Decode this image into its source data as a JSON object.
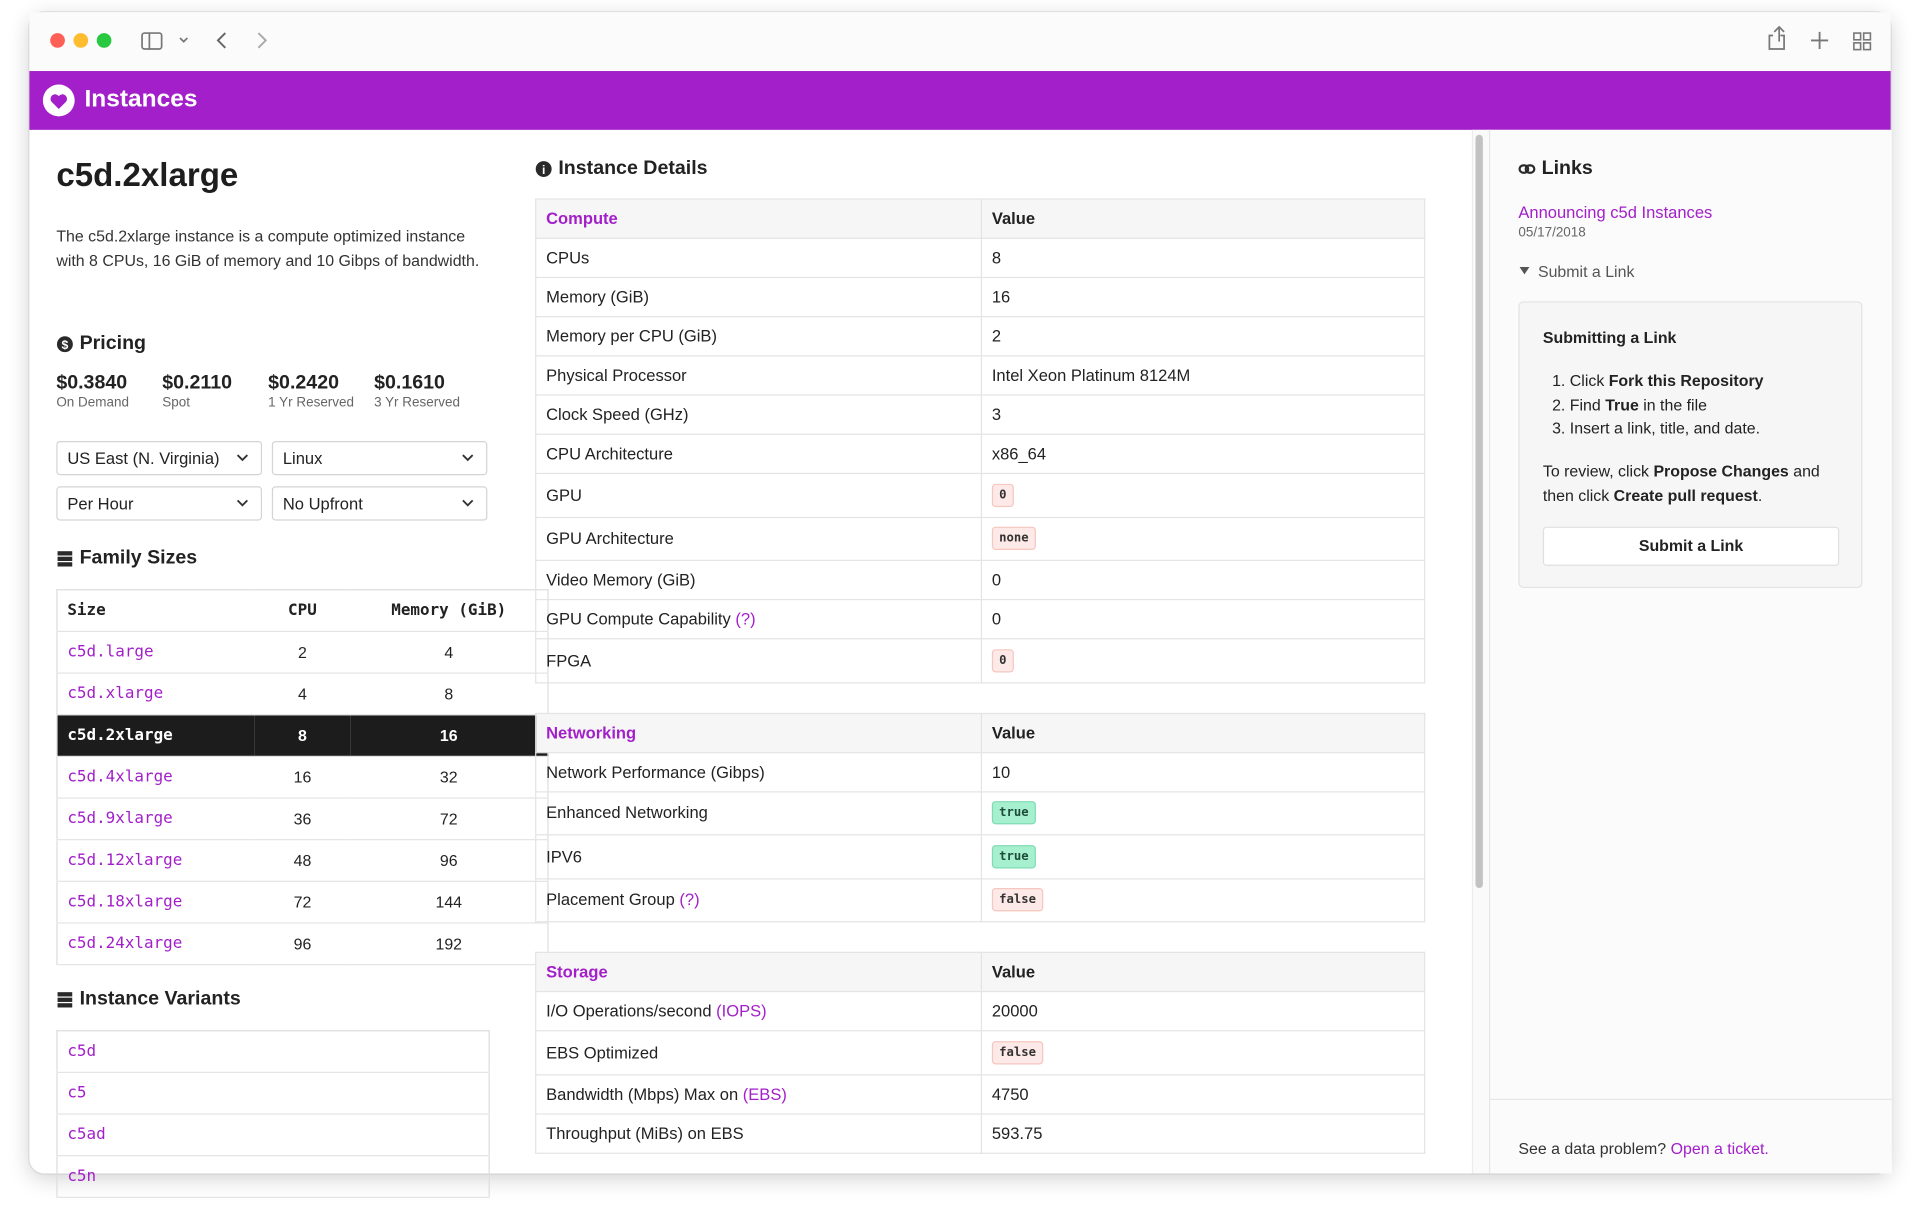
{
  "header": {
    "title": "Instances"
  },
  "instance": {
    "name": "c5d.2xlarge",
    "description": "The c5d.2xlarge instance is a compute optimized instance with 8 CPUs, 16 GiB of memory and 10 Gibps of bandwidth."
  },
  "pricing": {
    "title": "Pricing",
    "prices": [
      {
        "price": "$0.3840",
        "term": "On Demand"
      },
      {
        "price": "$0.2110",
        "term": "Spot"
      },
      {
        "price": "$0.2420",
        "term": "1 Yr Reserved"
      },
      {
        "price": "$0.1610",
        "term": "3 Yr Reserved"
      }
    ],
    "selects": [
      "US East (N. Virginia)",
      "Linux",
      "Per Hour",
      "No Upfront"
    ]
  },
  "family_sizes": {
    "title": "Family Sizes",
    "columns": [
      "Size",
      "CPU",
      "Memory (GiB)"
    ],
    "selected_row": 2,
    "rows": [
      [
        "c5d.large",
        "2",
        "4"
      ],
      [
        "c5d.xlarge",
        "4",
        "8"
      ],
      [
        "c5d.2xlarge",
        "8",
        "16"
      ],
      [
        "c5d.4xlarge",
        "16",
        "32"
      ],
      [
        "c5d.9xlarge",
        "36",
        "72"
      ],
      [
        "c5d.12xlarge",
        "48",
        "96"
      ],
      [
        "c5d.18xlarge",
        "72",
        "144"
      ],
      [
        "c5d.24xlarge",
        "96",
        "192"
      ]
    ]
  },
  "instance_variants": {
    "title": "Instance Variants",
    "rows": [
      "c5d",
      "c5",
      "c5ad",
      "c5n"
    ]
  },
  "details": {
    "title": "Instance Details",
    "sections": [
      {
        "name": "Compute",
        "value_header": "Value",
        "rows": [
          {
            "label": "CPUs",
            "value": "8"
          },
          {
            "label": "Memory (GiB)",
            "value": "16"
          },
          {
            "label": "Memory per CPU (GiB)",
            "value": "2"
          },
          {
            "label": "Physical Processor",
            "value": "Intel Xeon Platinum 8124M"
          },
          {
            "label": "Clock Speed (GHz)",
            "value": "3"
          },
          {
            "label": "CPU Architecture",
            "value": "x86_64"
          },
          {
            "label": "GPU",
            "value": "0",
            "badge": "red"
          },
          {
            "label": "GPU Architecture",
            "value": "none",
            "badge": "red"
          },
          {
            "label": "Video Memory (GiB)",
            "value": "0"
          },
          {
            "label": "GPU Compute Capability",
            "help": "(?)",
            "value": "0"
          },
          {
            "label": "FPGA",
            "value": "0",
            "badge": "red"
          }
        ]
      },
      {
        "name": "Networking",
        "value_header": "Value",
        "rows": [
          {
            "label": "Network Performance (Gibps)",
            "value": "10"
          },
          {
            "label": "Enhanced Networking",
            "value": "true",
            "badge": "green"
          },
          {
            "label": "IPV6",
            "value": "true",
            "badge": "green"
          },
          {
            "label": "Placement Group",
            "help": "(?)",
            "value": "false",
            "badge": "red"
          }
        ]
      },
      {
        "name": "Storage",
        "value_header": "Value",
        "rows": [
          {
            "label": "I/O Operations/second",
            "help": "(IOPS)",
            "value": "20000"
          },
          {
            "label": "EBS Optimized",
            "value": "false",
            "badge": "red"
          },
          {
            "label": "Bandwidth (Mbps) Max on",
            "help": "(EBS)",
            "value": "4750"
          },
          {
            "label": "Throughput (MiBs) on EBS",
            "value": "593.75"
          }
        ]
      }
    ]
  },
  "links": {
    "title": "Links",
    "items": [
      {
        "title": "Announcing c5d Instances",
        "date": "05/17/2018"
      }
    ],
    "toggle": "Submit a Link",
    "box": {
      "title": "Submitting a Link",
      "steps": [
        [
          {
            "t": "Click "
          },
          {
            "t": "Fork this Repository",
            "b": true
          }
        ],
        [
          {
            "t": "Find "
          },
          {
            "t": "True",
            "b": true
          },
          {
            "t": " in the file"
          }
        ],
        [
          {
            "t": "Insert a link, title, and date."
          }
        ]
      ],
      "review": [
        {
          "t": "To review, click "
        },
        {
          "t": "Propose Changes",
          "b": true
        },
        {
          "t": " and then click "
        },
        {
          "t": "Create pull request",
          "b": true
        },
        {
          "t": "."
        }
      ],
      "button": "Submit a Link"
    }
  },
  "footer": {
    "text": "See a data problem?",
    "link": "Open a ticket."
  }
}
